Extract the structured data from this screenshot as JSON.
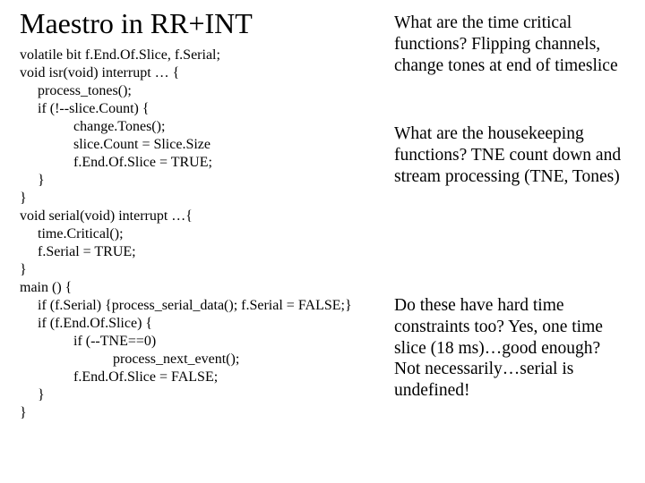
{
  "title": "Maestro in RR+INT",
  "code1": "volatile bit f.End.Of.Slice, f.Serial;\nvoid isr(void) interrupt … {\n     process_tones();\n     if (!--slice.Count) {\n               change.Tones();\n               slice.Count = Slice.Size\n               f.End.Of.Slice = TRUE;\n     }\n}\nvoid serial(void) interrupt …{\n     time.Critical();\n     f.Serial = TRUE;\n}",
  "code2": "main () {\n     if (f.Serial) {process_serial_data(); f.Serial = FALSE;}\n     if (f.End.Of.Slice) {\n               if (--TNE==0)\n                          process_next_event();\n               f.End.Of.Slice = FALSE;\n     }\n}",
  "r1": "What are the time critical functions?\nFlipping channels, change tones at end of timeslice",
  "r2": "What are the housekeeping functions?\nTNE count down and stream processing (TNE, Tones)",
  "r3": "Do these have hard time constraints too?\nYes, one time slice (18 ms)…good enough?\nNot necessarily…serial is undefined!"
}
